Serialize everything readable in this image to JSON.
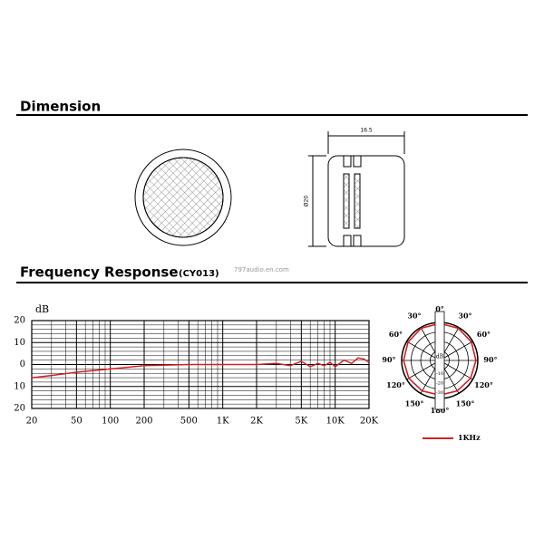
{
  "dimension": {
    "title": "Dimension",
    "width": "16.5",
    "diameter": "Ø20"
  },
  "frequency_response": {
    "title": "Frequency Response",
    "model": "(CY013)",
    "watermark": "797audio.en.com"
  },
  "chart_data": [
    {
      "type": "line",
      "y_label": "dB",
      "log_x": true,
      "grid": true,
      "xlim": [
        20,
        20000
      ],
      "ylim": [
        -20,
        20
      ],
      "xticks": [
        20,
        50,
        100,
        200,
        500,
        {
          "value": 1000,
          "label": "1K"
        },
        {
          "value": 2000,
          "label": "2K"
        },
        {
          "value": 5000,
          "label": "5K"
        },
        {
          "value": 10000,
          "label": "10K"
        },
        {
          "value": 20000,
          "label": "20K"
        }
      ],
      "yticks": [
        20,
        10,
        0,
        {
          "value": -10,
          "label": "10"
        },
        {
          "value": -20,
          "label": "20"
        }
      ],
      "x_minor_grid": [
        30,
        40,
        60,
        70,
        80,
        90,
        300,
        400,
        600,
        700,
        800,
        900,
        3000,
        4000,
        6000,
        7000,
        8000,
        9000
      ],
      "y_minor_grid": [
        -18,
        -16,
        -14,
        -12,
        -8,
        -6,
        -4,
        -2,
        2,
        4,
        6,
        8,
        12,
        14,
        16,
        18
      ],
      "x": [
        20,
        30,
        50,
        100,
        200,
        500,
        1000,
        2000,
        3000,
        4000,
        5000,
        6000,
        7000,
        8000,
        9000,
        10000,
        12000,
        14000,
        16000,
        18000,
        20000
      ],
      "color": "#d42020",
      "values": [
        -6,
        -5,
        -3.5,
        -2,
        -0.5,
        0,
        0,
        0,
        0.5,
        -0.5,
        1.5,
        -1,
        0.5,
        -0.5,
        1,
        -1,
        2,
        0.5,
        3,
        2.5,
        1
      ]
    },
    {
      "type": "polar",
      "r_label": "dB",
      "rlim": [
        -40,
        0
      ],
      "rticks": [
        0,
        -10,
        -20,
        -30
      ],
      "thetaticks": [
        {
          "value": 0,
          "label": "0°"
        },
        {
          "value": 30,
          "label": "30°"
        },
        {
          "value": 60,
          "label": "60°"
        },
        {
          "value": 90,
          "label": "90°"
        },
        {
          "value": 120,
          "label": "120°"
        },
        {
          "value": 150,
          "label": "150°"
        },
        {
          "value": 180,
          "label": "180°"
        },
        {
          "value": 210,
          "label": "150°"
        },
        {
          "value": 240,
          "label": "120°"
        },
        {
          "value": 270,
          "label": "90°"
        },
        {
          "value": 300,
          "label": "60°"
        },
        {
          "value": 330,
          "label": "30°"
        }
      ],
      "theta": [
        0,
        30,
        60,
        90,
        120,
        150,
        180,
        210,
        240,
        270,
        300,
        330
      ],
      "series": [
        {
          "name": "1KHz",
          "color": "#d42020",
          "values": [
            -1,
            -1,
            -1.5,
            -2,
            -2.5,
            -3,
            -3.5,
            -3,
            -2.5,
            -2,
            -1.5,
            -1
          ]
        }
      ]
    }
  ]
}
